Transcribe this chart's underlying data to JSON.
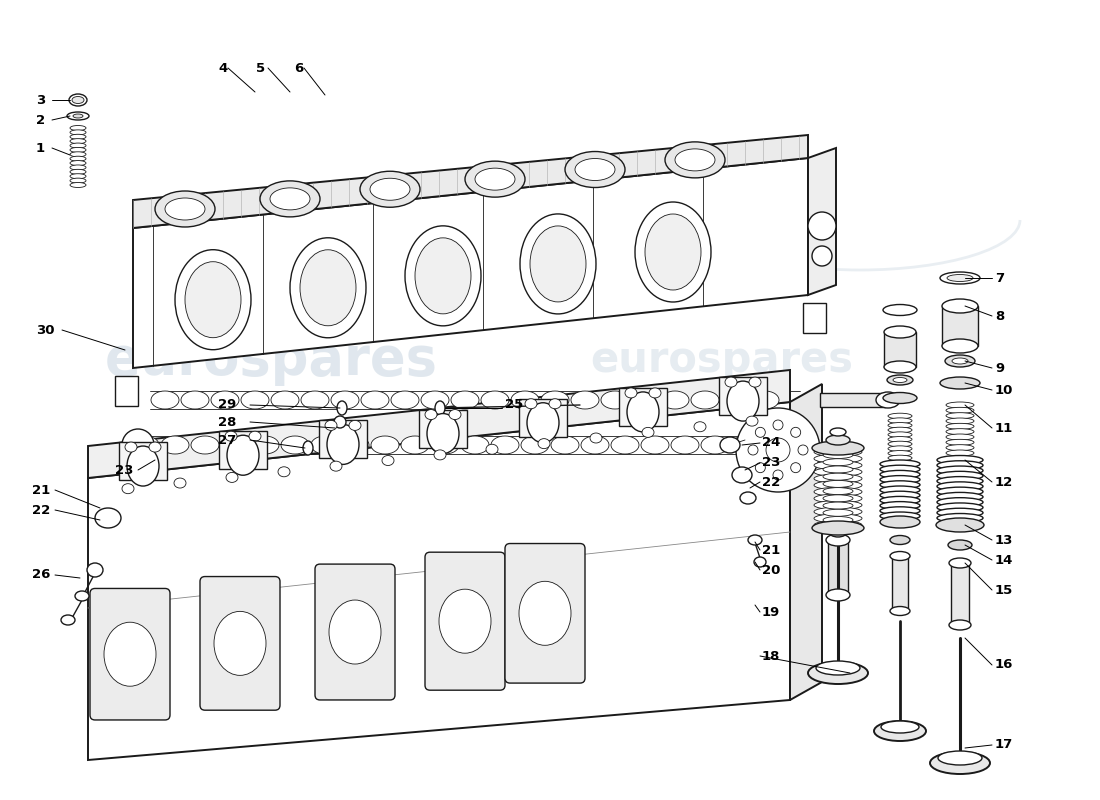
{
  "bg_color": "#ffffff",
  "lc": "#1a1a1a",
  "wc": "#c8d5e0",
  "lw1": 1.4,
  "lw2": 1.0,
  "lw3": 0.6,
  "fs_label": 9.5,
  "labels_left": [
    [
      "3",
      55,
      107
    ],
    [
      "2",
      55,
      127
    ],
    [
      "1",
      55,
      150
    ],
    [
      "30",
      35,
      328
    ],
    [
      "23",
      115,
      470
    ],
    [
      "21",
      32,
      490
    ],
    [
      "22",
      32,
      510
    ],
    [
      "26",
      35,
      560
    ]
  ],
  "labels_top": [
    [
      "4",
      222,
      70
    ],
    [
      "5",
      258,
      70
    ],
    [
      "6",
      292,
      70
    ]
  ],
  "labels_right_mid": [
    [
      "29",
      220,
      408
    ],
    [
      "28",
      220,
      425
    ],
    [
      "27",
      220,
      442
    ],
    [
      "25",
      500,
      405
    ]
  ],
  "labels_right": [
    [
      "24",
      760,
      447
    ],
    [
      "23",
      760,
      465
    ],
    [
      "22",
      760,
      485
    ],
    [
      "21",
      760,
      555
    ],
    [
      "20",
      760,
      575
    ],
    [
      "19",
      760,
      618
    ],
    [
      "18",
      760,
      660
    ]
  ],
  "labels_far_right": [
    [
      "7",
      1010,
      290
    ],
    [
      "8",
      1010,
      330
    ],
    [
      "9",
      1010,
      370
    ],
    [
      "10",
      1010,
      400
    ],
    [
      "11",
      1010,
      438
    ],
    [
      "12",
      1010,
      490
    ],
    [
      "13",
      1010,
      528
    ],
    [
      "14",
      1010,
      558
    ],
    [
      "15",
      1010,
      590
    ],
    [
      "16",
      1010,
      660
    ],
    [
      "17",
      1010,
      730
    ]
  ]
}
